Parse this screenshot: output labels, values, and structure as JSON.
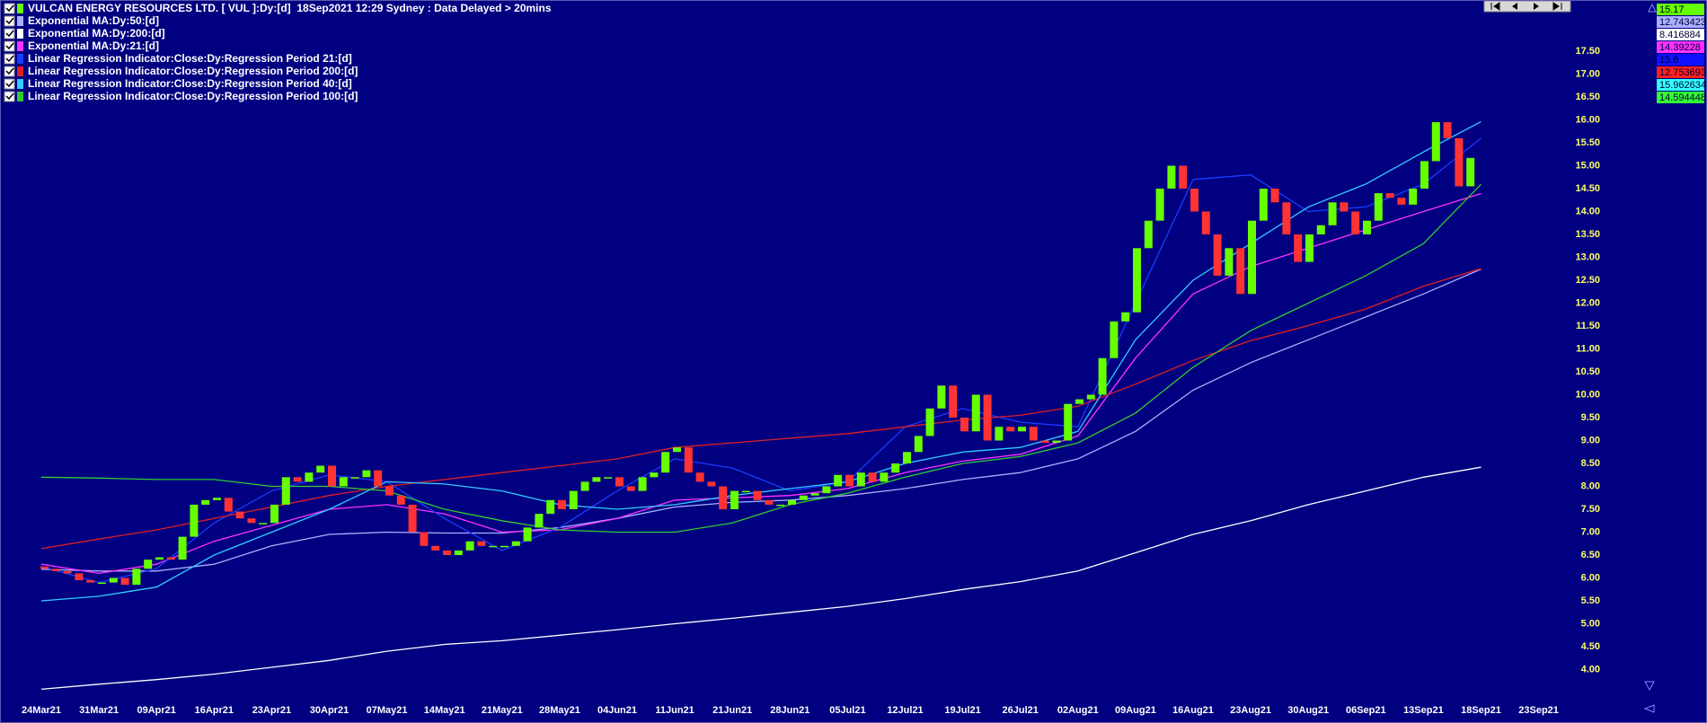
{
  "chart_data": {
    "type": "candlestick",
    "title": "VULCAN ENERGY RESOURCES LTD. [ VUL ]:Dy:[d]  18Sep2021 12:29 Sydney : Data Delayed > 20mins",
    "title_color": "#66ff00",
    "categories": [
      "24Mar21",
      "31Mar21",
      "09Apr21",
      "16Apr21",
      "23Apr21",
      "30Apr21",
      "07May21",
      "14May21",
      "21May21",
      "28May21",
      "04Jun21",
      "11Jun21",
      "21Jun21",
      "28Jun21",
      "05Jul21",
      "12Jul21",
      "19Jul21",
      "26Jul21",
      "02Aug21",
      "09Aug21",
      "16Aug21",
      "23Aug21",
      "30Aug21",
      "06Sep21",
      "13Sep21",
      "18Sep21",
      "23Sep21"
    ],
    "up_color": "#66ff00",
    "down_color": "#ff3333",
    "open": [
      6.25,
      6.2,
      6.15,
      6.1,
      5.95,
      5.9,
      5.9,
      6.0,
      5.85,
      6.2,
      6.4,
      6.45,
      6.4,
      6.9,
      7.6,
      7.7,
      7.75,
      7.45,
      7.3,
      7.2,
      7.2,
      7.6,
      8.2,
      8.1,
      8.3,
      8.45,
      8.0,
      8.2,
      8.2,
      8.35,
      8.0,
      7.8,
      7.6,
      7.0,
      6.7,
      6.6,
      6.5,
      6.6,
      6.8,
      6.7,
      6.7,
      6.7,
      6.8,
      7.1,
      7.4,
      7.7,
      7.5,
      7.9,
      8.1,
      8.2,
      8.2,
      8.0,
      7.9,
      8.2,
      8.3,
      8.75,
      8.85,
      8.3,
      8.1,
      8.0,
      7.5,
      7.9,
      7.9,
      7.7,
      7.6,
      7.6,
      7.7,
      7.8,
      7.85,
      8.0,
      8.25,
      8.0,
      8.3,
      8.1,
      8.3,
      8.5,
      8.75,
      9.1,
      9.7,
      10.2,
      9.5,
      9.2,
      10.0,
      9.0,
      9.3,
      9.2,
      9.3,
      9.0,
      8.95,
      9.0,
      9.8,
      9.9,
      10.0,
      10.8,
      11.6,
      11.8,
      13.2,
      13.8,
      14.5,
      15.0,
      14.5,
      14.0,
      13.5,
      12.6,
      13.2,
      12.2,
      13.8,
      14.5,
      14.2,
      13.5,
      12.9,
      13.5,
      13.7,
      14.2,
      14.0,
      13.5,
      13.8,
      14.4,
      14.3,
      14.15,
      14.5,
      15.1,
      15.95,
      15.6,
      14.55
    ],
    "close": [
      6.2,
      6.15,
      6.1,
      5.95,
      5.9,
      5.9,
      6.0,
      5.85,
      6.2,
      6.4,
      6.45,
      6.4,
      6.9,
      7.6,
      7.7,
      7.75,
      7.45,
      7.3,
      7.2,
      7.2,
      7.6,
      8.2,
      8.1,
      8.3,
      8.45,
      8.0,
      8.2,
      8.2,
      8.35,
      8.0,
      7.8,
      7.6,
      7.0,
      6.7,
      6.6,
      6.5,
      6.6,
      6.8,
      6.7,
      6.7,
      6.7,
      6.8,
      7.1,
      7.4,
      7.7,
      7.5,
      7.9,
      8.1,
      8.2,
      8.2,
      8.0,
      7.9,
      8.2,
      8.3,
      8.75,
      8.85,
      8.3,
      8.1,
      8.0,
      7.5,
      7.9,
      7.9,
      7.7,
      7.6,
      7.6,
      7.7,
      7.8,
      7.85,
      8.0,
      8.25,
      8.0,
      8.3,
      8.1,
      8.3,
      8.5,
      8.75,
      9.1,
      9.7,
      10.2,
      9.5,
      9.2,
      10.0,
      9.0,
      9.3,
      9.2,
      9.3,
      9.0,
      8.95,
      9.0,
      9.8,
      9.9,
      10.0,
      10.8,
      11.6,
      11.8,
      13.2,
      13.8,
      14.5,
      15.0,
      14.5,
      14.0,
      13.5,
      12.6,
      13.2,
      12.2,
      13.8,
      14.5,
      14.2,
      13.5,
      12.9,
      13.5,
      13.7,
      14.2,
      14.0,
      13.5,
      13.8,
      14.4,
      14.3,
      14.15,
      14.5,
      15.1,
      15.95,
      15.6,
      14.55,
      15.17
    ],
    "series": [
      {
        "name": "Exponential MA:Dy:50:[d]",
        "color": "#aab0ff",
        "values": [
          6.19,
          6.15,
          6.15,
          6.3,
          6.7,
          6.95,
          7.0,
          6.98,
          6.98,
          7.1,
          7.3,
          7.55,
          7.65,
          7.7,
          7.8,
          7.95,
          8.15,
          8.3,
          8.6,
          9.2,
          10.1,
          10.7,
          11.2,
          11.7,
          12.2,
          12.743423,
          null
        ]
      },
      {
        "name": "Exponential MA:Dy:200:[d]",
        "color": "#ffffff",
        "values": [
          3.57,
          3.68,
          3.78,
          3.9,
          4.05,
          4.2,
          4.4,
          4.55,
          4.63,
          4.75,
          4.87,
          5.0,
          5.12,
          5.25,
          5.38,
          5.55,
          5.75,
          5.92,
          6.15,
          6.55,
          6.95,
          7.25,
          7.6,
          7.9,
          8.2,
          8.416884,
          null
        ]
      },
      {
        "name": "Exponential MA:Dy:21:[d]",
        "color": "#ff33ff",
        "values": [
          6.3,
          6.1,
          6.3,
          6.8,
          7.15,
          7.5,
          7.6,
          7.4,
          7.0,
          7.05,
          7.3,
          7.7,
          7.75,
          7.8,
          7.95,
          8.3,
          8.55,
          8.7,
          9.1,
          10.8,
          12.2,
          12.8,
          13.2,
          13.6,
          14.0,
          14.39228,
          null
        ]
      },
      {
        "name": "Linear Regression Indicator:Close:Dy:Regression Period 21:[d]",
        "color": "#1a3cff",
        "values": [
          6.25,
          5.9,
          6.2,
          7.2,
          7.9,
          8.25,
          8.1,
          7.3,
          6.6,
          7.1,
          7.9,
          8.6,
          8.4,
          7.9,
          8.1,
          9.3,
          9.7,
          9.4,
          9.3,
          12.0,
          14.7,
          14.8,
          14.0,
          14.1,
          14.6,
          15.6,
          null
        ]
      },
      {
        "name": "Linear Regression Indicator:Close:Dy:Regression Period 200:[d]",
        "color": "#e02020",
        "values": [
          6.64,
          6.85,
          7.05,
          7.3,
          7.55,
          7.8,
          8.0,
          8.15,
          8.3,
          8.45,
          8.6,
          8.85,
          8.95,
          9.05,
          9.15,
          9.3,
          9.45,
          9.55,
          9.75,
          10.23,
          10.75,
          11.18,
          11.51,
          11.87,
          12.37,
          12.753693,
          null
        ]
      },
      {
        "name": "Linear Regression Indicator:Close:Dy:Regression Period 40:[d]",
        "color": "#33ccff",
        "values": [
          5.5,
          5.6,
          5.8,
          6.5,
          7.0,
          7.5,
          8.1,
          8.05,
          7.9,
          7.6,
          7.5,
          7.6,
          7.8,
          7.95,
          8.1,
          8.5,
          8.75,
          8.85,
          9.2,
          11.2,
          12.5,
          13.3,
          14.1,
          14.6,
          15.3,
          15.962634,
          null
        ]
      },
      {
        "name": "Linear Regression Indicator:Close:Dy:Regression Period 100:[d]",
        "color": "#33cc33",
        "values": [
          8.2,
          8.18,
          8.15,
          8.15,
          8.0,
          8.0,
          7.9,
          7.5,
          7.25,
          7.05,
          7.0,
          7.0,
          7.2,
          7.6,
          7.85,
          8.2,
          8.5,
          8.65,
          8.95,
          9.6,
          10.6,
          11.4,
          12.0,
          12.6,
          13.3,
          14.594448,
          null
        ]
      }
    ],
    "box_colors": [
      "#aab0ff",
      "#ffffff",
      "#ff33ff",
      "#1010ff",
      "#ff2020",
      "#33ffff",
      "#33ff33"
    ],
    "ylim": [
      3.5,
      18.5
    ],
    "yticks": [
      {
        "value": 4,
        "label": "4.00"
      },
      {
        "value": 4.5,
        "label": "4.50"
      },
      {
        "value": 5,
        "label": "5.00"
      },
      {
        "value": 5.5,
        "label": "5.50"
      },
      {
        "value": 6,
        "label": "6.00"
      },
      {
        "value": 6.5,
        "label": "6.50"
      },
      {
        "value": 7,
        "label": "7.00"
      },
      {
        "value": 7.5,
        "label": "7.50"
      },
      {
        "value": 8,
        "label": "8.00"
      },
      {
        "value": 8.5,
        "label": "8.50"
      },
      {
        "value": 9,
        "label": "9.00"
      },
      {
        "value": 9.5,
        "label": "9.50"
      },
      {
        "value": 10,
        "label": "10.00"
      },
      {
        "value": 10.5,
        "label": "10.50"
      },
      {
        "value": 11,
        "label": "11.00"
      },
      {
        "value": 11.5,
        "label": "11.50"
      },
      {
        "value": 12,
        "label": "12.00"
      },
      {
        "value": 12.5,
        "label": "12.50"
      },
      {
        "value": 13,
        "label": "13.00"
      },
      {
        "value": 13.5,
        "label": "13.50"
      },
      {
        "value": 14,
        "label": "14.00"
      },
      {
        "value": 14.5,
        "label": "14.50"
      },
      {
        "value": 15,
        "label": "15.00"
      },
      {
        "value": 15.5,
        "label": "15.50"
      },
      {
        "value": 16,
        "label": "16.00"
      },
      {
        "value": 16.5,
        "label": "16.50"
      },
      {
        "value": 17,
        "label": "17.00"
      },
      {
        "value": 17.5,
        "label": "17.50"
      }
    ]
  }
}
